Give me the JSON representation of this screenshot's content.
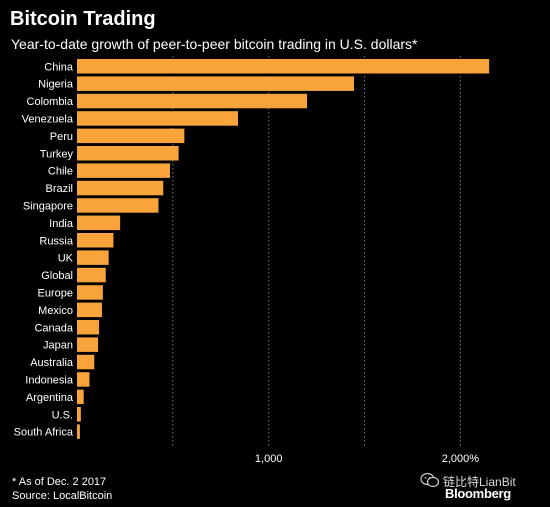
{
  "header": {
    "title": "Bitcoin Trading",
    "subtitle": "Year-to-date growth of peer-to-peer bitcoin trading in U.S. dollars*"
  },
  "footer": {
    "note": "* As of Dec. 2 2017",
    "source": "Source: LocalBitcoin"
  },
  "watermark": {
    "text": "链比特LianBit",
    "logo": "Bloomberg",
    "icon": "wechat-icon"
  },
  "colors": {
    "bar": "#F9A43B",
    "background": "#000000",
    "gridline": "#777777",
    "text": "#FFFFFF"
  },
  "chart_data": {
    "type": "bar",
    "orientation": "horizontal",
    "categories": [
      "China",
      "Nigeria",
      "Colombia",
      "Venezuela",
      "Peru",
      "Turkey",
      "Chile",
      "Brazil",
      "Singapore",
      "India",
      "Russia",
      "UK",
      "Global",
      "Europe",
      "Mexico",
      "Canada",
      "Japan",
      "Australia",
      "Indonesia",
      "Argentina",
      "U.S.",
      "South Africa"
    ],
    "values": [
      2150,
      1445,
      1200,
      840,
      560,
      530,
      485,
      450,
      425,
      225,
      190,
      165,
      150,
      135,
      130,
      115,
      110,
      90,
      65,
      35,
      20,
      15
    ],
    "x_ticks": [
      {
        "value": 1000,
        "label": "1,000"
      },
      {
        "value": 2000,
        "label": "2,000%"
      }
    ],
    "x_gridlines": [
      500,
      1000,
      1500,
      2000
    ],
    "xlim": [
      0,
      2200
    ],
    "grid": true,
    "legend": "none"
  }
}
